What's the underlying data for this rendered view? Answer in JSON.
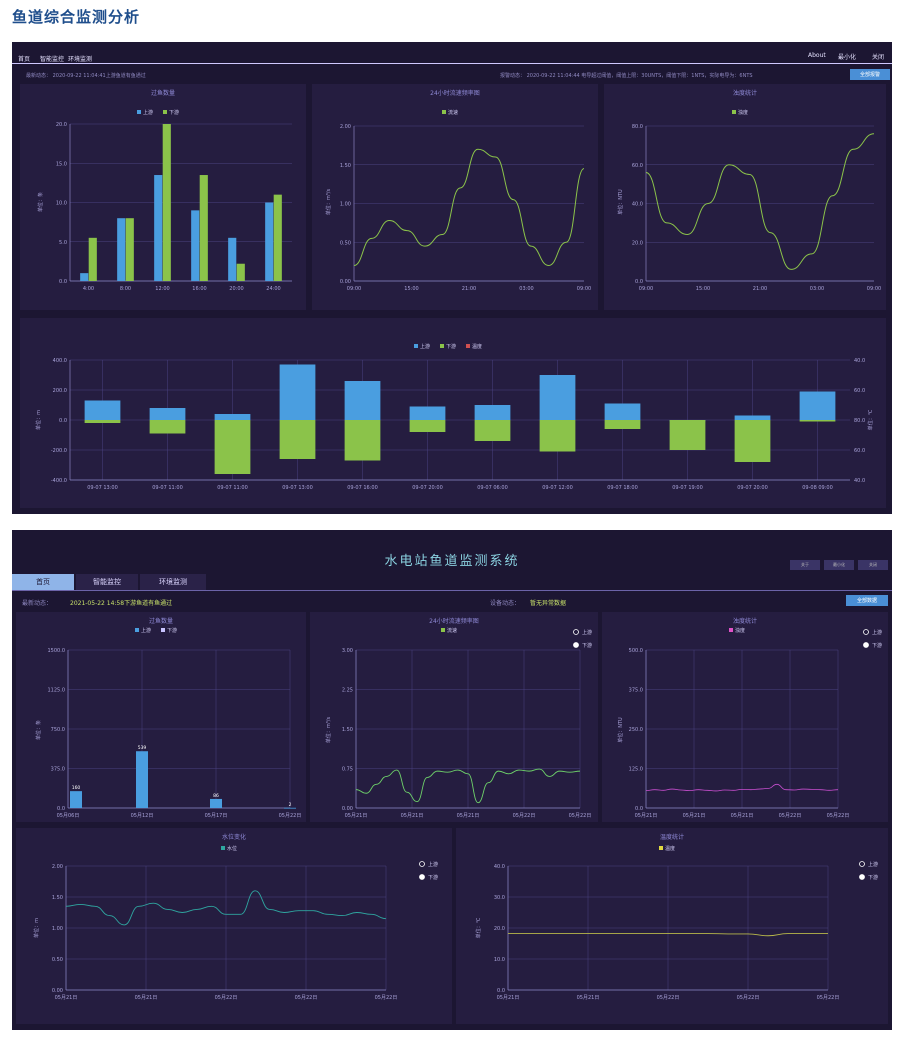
{
  "page_title": "鱼道综合监测分析",
  "sys1": {
    "nav": [
      "首页",
      "智能监控",
      "环境监测"
    ],
    "top_right": [
      "About",
      "最小化",
      "关闭"
    ],
    "status_left": "最新动态： 2020-09-22 11:04:41上游鱼道有鱼通过",
    "status_right": "报警动态： 2020-09-22 11:04:44 电导超过阈值，阈值上限：30UNTS，阈值下限：1NTS，实际电导为：6NTS",
    "button": "全部报警",
    "fish_title": "过鱼数量",
    "flow_title": "24小时流速频率图",
    "turb_title": "浊度统计",
    "combo_ylabel_left": "单位：m",
    "combo_ylabel_right": "单位：℃"
  },
  "sys2": {
    "title": "水电站鱼道监测系统",
    "window_buttons": [
      "关于",
      "最小化",
      "关闭"
    ],
    "tabs": [
      "首页",
      "智能监控",
      "环境监测"
    ],
    "status_label": "最新动态：",
    "status_text": "2021-05-22 14:58下游鱼道有鱼通过",
    "device_label": "设备动态：",
    "device_text": "暂无异常数据",
    "button": "全部数据",
    "fish_title": "过鱼数量",
    "flow_title": "24小时流速频率图",
    "turb_title": "浊度统计",
    "level_title": "水位变化",
    "temp_title": "温度统计",
    "legend_up": "上游",
    "legend_down": "下游",
    "legend_flow": "流速",
    "legend_turb": "浊度",
    "legend_level": "水位",
    "legend_temp": "温度",
    "ylabel_fish": "单位：条",
    "ylabel_flow": "单位：m³/s",
    "ylabel_turb": "单位：NTU",
    "ylabel_level": "单位：m",
    "ylabel_temp": "单位：℃"
  },
  "chart_data": [
    {
      "id": "s1_fish",
      "type": "bar",
      "categories": [
        "4:00",
        "8:00",
        "12:00",
        "16:00",
        "20:00",
        "24:00"
      ],
      "series": [
        {
          "name": "上游",
          "values": [
            1,
            8,
            13.5,
            9,
            5.5,
            10
          ],
          "color": "#4a9ee0"
        },
        {
          "name": "下游",
          "values": [
            5.5,
            8,
            20,
            13.5,
            2.2,
            11
          ],
          "color": "#8bc34a"
        }
      ],
      "ylim": [
        0,
        20
      ],
      "yticks": [
        "0.0",
        "5.0",
        "10.0",
        "15.0",
        "20.0"
      ],
      "ylabel": "单位：条"
    },
    {
      "id": "s1_flow",
      "type": "line",
      "legend": [
        "流速"
      ],
      "xticks": [
        "09:00",
        "15:00",
        "21:00",
        "03:00",
        "09:00"
      ],
      "yticks": [
        "0.00",
        "0.50",
        "1.00",
        "1.50",
        "2.00"
      ],
      "ylim": [
        0,
        2
      ],
      "ylabel": "单位：m³/s",
      "values": [
        0.2,
        0.55,
        0.78,
        0.65,
        0.45,
        0.6,
        1.2,
        1.7,
        1.6,
        1.05,
        0.45,
        0.2,
        0.5,
        1.45
      ]
    },
    {
      "id": "s1_turb",
      "type": "line",
      "legend": [
        "浊度"
      ],
      "xticks": [
        "09:00",
        "15:00",
        "21:00",
        "03:00",
        "09:00"
      ],
      "yticks": [
        "0.0",
        "20.0",
        "40.0",
        "60.0",
        "80.0"
      ],
      "ylim": [
        0,
        80
      ],
      "ylabel": "单位：NTU",
      "values": [
        56,
        30,
        24,
        40,
        60,
        55,
        25,
        6,
        14,
        44,
        68,
        76
      ]
    },
    {
      "id": "s1_combo",
      "type": "bar",
      "legend": [
        "上游",
        "下游",
        "温度"
      ],
      "categories": [
        "09-07 13:00",
        "09-07 11:00",
        "09-07 11:00",
        "09-07 13:00",
        "09-07 16:00",
        "09-07 20:00",
        "09-07 06:00",
        "09-07 12:00",
        "09-07 18:00",
        "09-07 19:00",
        "09-07 20:00",
        "09-08 09:00"
      ],
      "series": [
        {
          "name": "上游",
          "values": [
            130,
            80,
            40,
            370,
            260,
            90,
            100,
            300,
            110,
            -10,
            30,
            190
          ],
          "color": "#4a9ee0"
        },
        {
          "name": "下游",
          "values": [
            -20,
            -90,
            -360,
            -260,
            -270,
            -80,
            -140,
            -210,
            -60,
            -200,
            -280,
            -10
          ],
          "color": "#8bc34a"
        }
      ],
      "ylim": [
        -400,
        400
      ],
      "yticks": [
        "-400.0",
        "-200.0",
        "0.0",
        "200.0",
        "400.0"
      ],
      "y2ticks": [
        "40.0",
        "60.0",
        "80.0",
        "60.0",
        "40.0"
      ]
    },
    {
      "id": "s2_fish",
      "type": "bar",
      "categories": [
        "05月06日",
        "05月12日",
        "05月17日",
        "05月22日"
      ],
      "series": [
        {
          "name": "上游",
          "values": [
            160,
            539,
            86,
            2
          ],
          "color": "#4a9ee0"
        },
        {
          "name": "下游",
          "values": [
            0,
            0,
            0,
            0
          ],
          "color": "#c9c4ff"
        }
      ],
      "labels": [
        "160",
        "539",
        "86",
        "2"
      ],
      "ylim": [
        0,
        1500
      ],
      "yticks": [
        "0.0",
        "375.0",
        "750.0",
        "1125.0",
        "1500.0"
      ]
    },
    {
      "id": "s2_flow",
      "type": "line",
      "xticks": [
        "05月21日",
        "05月21日",
        "05月21日",
        "05月22日",
        "05月22日"
      ],
      "yticks": [
        "0.00",
        "0.75",
        "1.50",
        "2.25",
        "3.00"
      ],
      "ylim": [
        0,
        3
      ],
      "values": [
        0.35,
        0.28,
        0.45,
        0.6,
        0.72,
        0.3,
        0.12,
        0.58,
        0.7,
        0.68,
        0.72,
        0.65,
        0.1,
        0.48,
        0.7,
        0.65,
        0.72,
        0.7,
        0.74,
        0.6,
        0.7,
        0.68,
        0.7
      ]
    },
    {
      "id": "s2_turb",
      "type": "line",
      "xticks": [
        "05月21日",
        "05月21日",
        "05月21日",
        "05月22日",
        "05月22日"
      ],
      "yticks": [
        "0.0",
        "125.0",
        "250.0",
        "375.0",
        "500.0"
      ],
      "ylim": [
        0,
        500
      ],
      "values": [
        55,
        58,
        56,
        60,
        57,
        55,
        58,
        56,
        54,
        57,
        56,
        59,
        58,
        60,
        62,
        75,
        58,
        57,
        60,
        59,
        58,
        56,
        58
      ]
    },
    {
      "id": "s2_level",
      "type": "line",
      "xticks": [
        "05月21日",
        "05月21日",
        "05月22日",
        "05月22日",
        "05月22日"
      ],
      "yticks": [
        "0.00",
        "0.50",
        "1.00",
        "1.50",
        "2.00"
      ],
      "ylim": [
        0,
        2
      ],
      "values": [
        1.35,
        1.38,
        1.35,
        1.2,
        1.05,
        1.35,
        1.4,
        1.3,
        1.25,
        1.3,
        1.35,
        1.22,
        1.22,
        1.6,
        1.3,
        1.25,
        1.28,
        1.28,
        1.22,
        1.2,
        1.25,
        1.22,
        1.15
      ]
    },
    {
      "id": "s2_temp",
      "type": "line",
      "xticks": [
        "05月21日",
        "05月21日",
        "05月22日",
        "05月22日",
        "05月22日"
      ],
      "yticks": [
        "0.0",
        "10.0",
        "20.0",
        "30.0",
        "40.0"
      ],
      "ylim": [
        0,
        40
      ],
      "values": [
        18.2,
        18.2,
        18.2,
        18.2,
        18.2,
        18.2,
        18.2,
        18.2,
        18.2,
        18.2,
        18.2,
        18.1,
        18.1,
        17.5,
        18.2,
        18.2,
        18.2
      ]
    }
  ]
}
